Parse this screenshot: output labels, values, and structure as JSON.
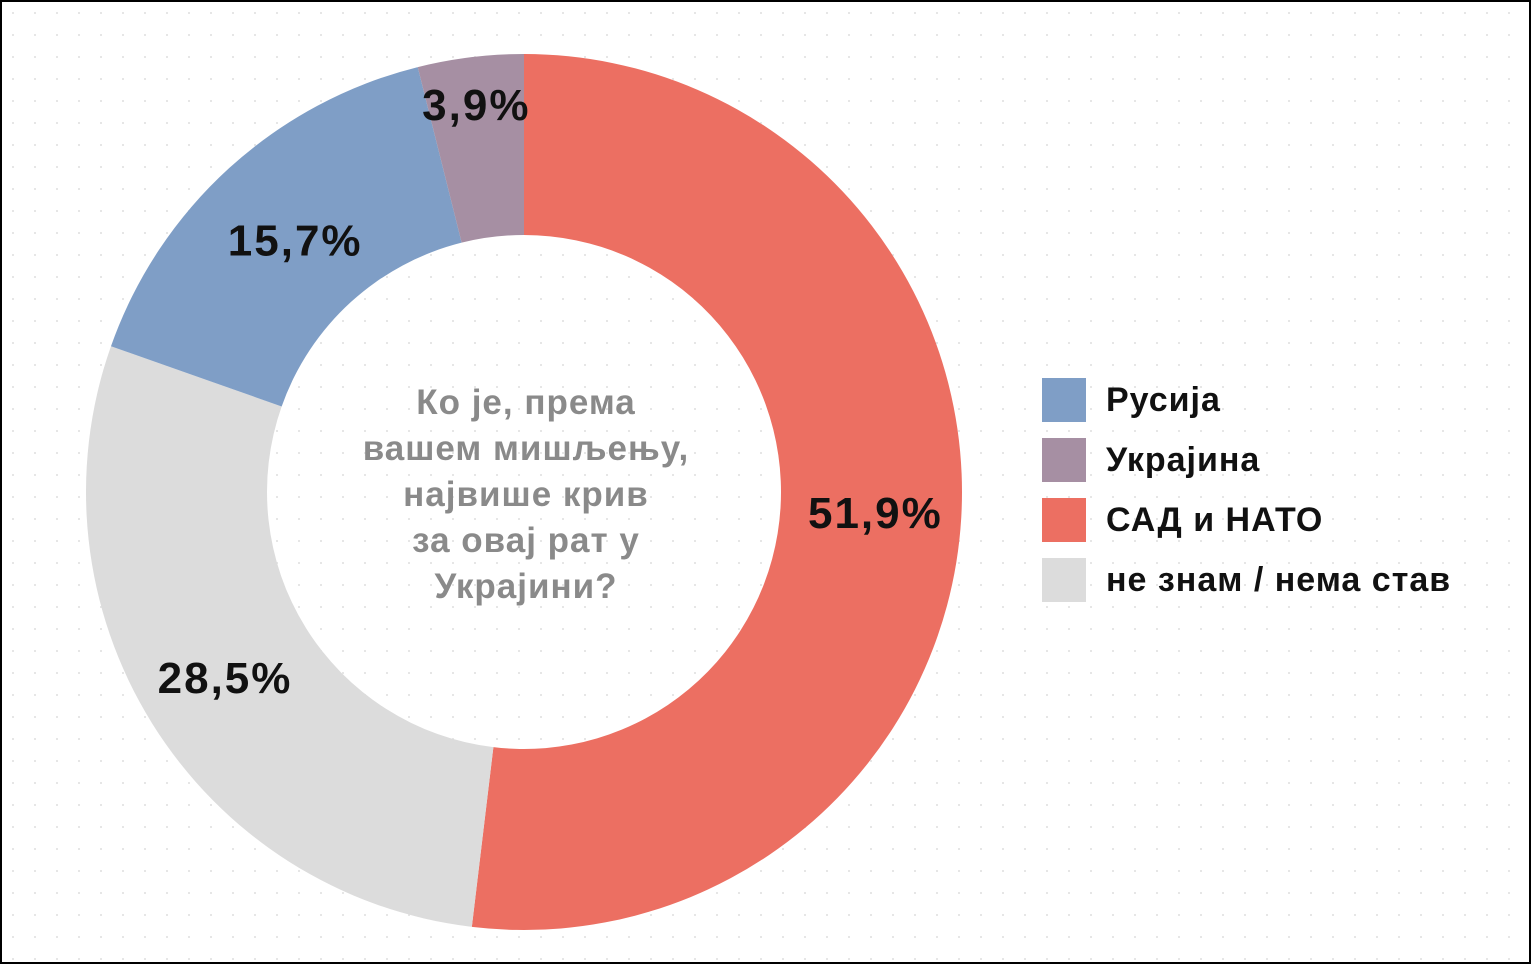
{
  "chart_data": {
    "type": "pie",
    "variant": "donut",
    "title": "Ко је, према вашем мишљењу, највише крив за овај рат у Украјини?",
    "title_lines": [
      "Ко је, према",
      "вашем мишљењу,",
      "највише крив",
      "за овај рат у",
      "Украјини?"
    ],
    "series": [
      {
        "name": "Русија",
        "value": 15.7,
        "label": "15,7%",
        "color": "#7f9ec6"
      },
      {
        "name": "Украјина",
        "value": 3.9,
        "label": "3,9%",
        "color": "#a68fa3"
      },
      {
        "name": "САД и НАТО",
        "value": 51.9,
        "label": "51,9%",
        "color": "#ec6f62"
      },
      {
        "name": "не знам / нема став",
        "value": 28.5,
        "label": "28,5%",
        "color": "#dcdcdc"
      }
    ],
    "legend": {
      "placement": "right"
    }
  }
}
